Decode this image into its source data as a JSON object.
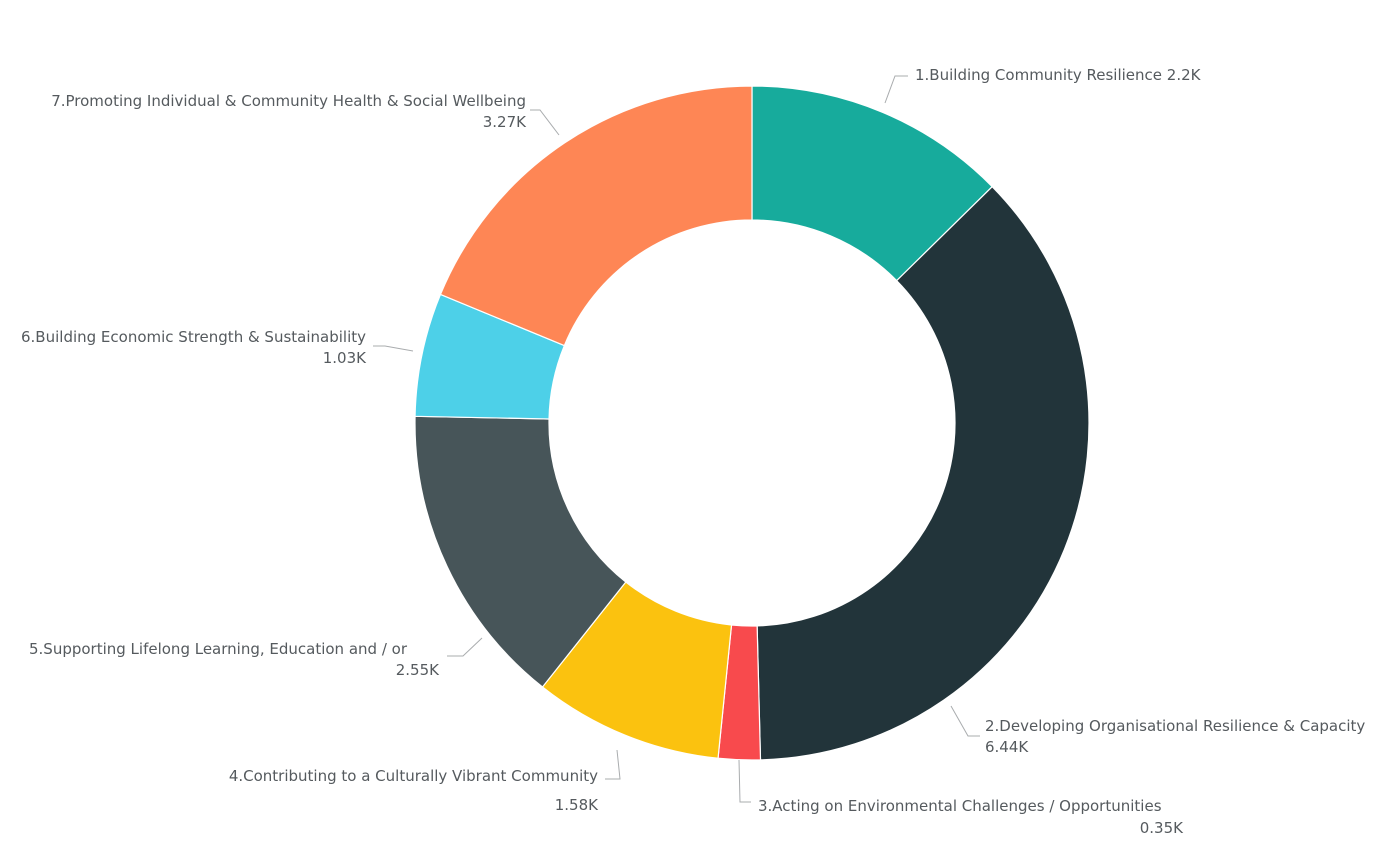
{
  "chart_data": {
    "type": "pie",
    "variant": "donut",
    "legend": "none",
    "data_labels": "outside",
    "start_angle_deg": 0,
    "direction": "clockwise",
    "slices": [
      {
        "label": "1.Building Community Resilience",
        "value": 2.2,
        "value_label": "2.2K",
        "color": "#17ab9c"
      },
      {
        "label": "2.Developing Organisational Resilience & Capacity",
        "value": 6.44,
        "value_label": "6.44K",
        "color": "#22343a"
      },
      {
        "label": "3.Acting on Environmental Challenges / Opportunities",
        "value": 0.35,
        "value_label": "0.35K",
        "color": "#f84a4d"
      },
      {
        "label": "4.Contributing to a Culturally Vibrant Community",
        "value": 1.58,
        "value_label": "1.58K",
        "color": "#fbc20f"
      },
      {
        "label": "5.Supporting Lifelong Learning, Education and / or",
        "value": 2.55,
        "value_label": "2.55K",
        "color": "#475559"
      },
      {
        "label": "6.Building Economic Strength & Sustainability",
        "value": 1.03,
        "value_label": "1.03K",
        "color": "#4dd0e8"
      },
      {
        "label": "7.Promoting Individual & Community Health & Social Wellbeing",
        "value": 3.27,
        "value_label": "3.27K",
        "color": "#fe8655"
      }
    ]
  }
}
